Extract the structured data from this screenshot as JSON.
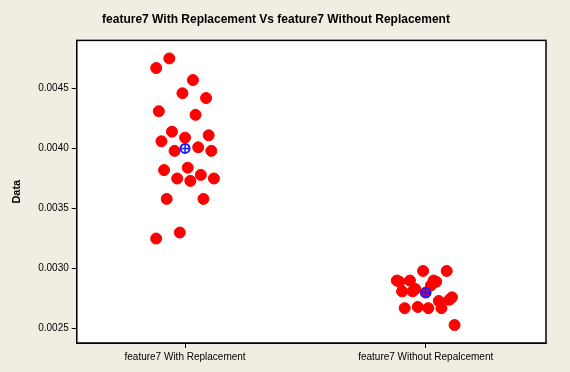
{
  "chart_data": {
    "type": "strip",
    "title": "feature7 With Replacement Vs feature7 Without Replacement",
    "y_label": "Data",
    "categories": [
      "feature7 With Replacement",
      "feature7 Without Repalcement"
    ],
    "values": [
      [
        0.00467,
        0.00457,
        0.00475,
        0.00442,
        0.00446,
        0.00431,
        0.00428,
        0.00414,
        0.00411,
        0.00409,
        0.00406,
        0.00401,
        0.00398,
        0.00398,
        0.00384,
        0.00382,
        0.00378,
        0.00375,
        0.00375,
        0.00373,
        0.00358,
        0.00358,
        0.0033,
        0.00325
      ],
      [
        0.0029,
        0.0029,
        0.0029,
        0.00298,
        0.00298,
        0.00289,
        0.00289,
        0.00281,
        0.00274,
        0.0028,
        0.00281,
        0.00273,
        0.00283,
        0.00276,
        0.00267,
        0.00267,
        0.00267,
        0.00268,
        0.00253,
        0.00286
      ]
    ],
    "means": [
      0.004,
      0.0028
    ],
    "color": "#ff0000",
    "ylim": [
      0.00238,
      0.0049
    ],
    "yticks": [
      0.0025,
      {
        "value": 0.003,
        "label": "0.0030"
      },
      0.0035,
      {
        "value": 0.004,
        "label": "0.0040"
      },
      0.0045
    ],
    "grid": false
  }
}
